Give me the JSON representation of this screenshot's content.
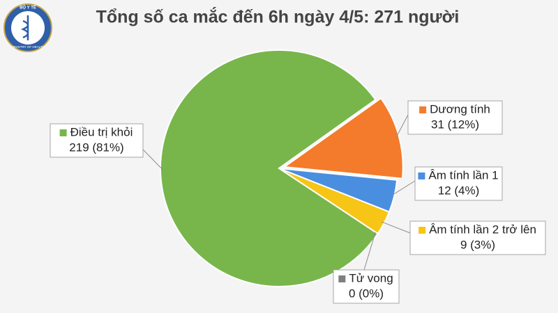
{
  "logo": {
    "top": "BỘ Y TẾ",
    "bottom": "MINISTRY OF HEALTH"
  },
  "chart_data": {
    "type": "pie",
    "title": "Tổng số ca mắc đến 6h ngày 4/5: 271 người",
    "categories": [
      "Dương tính",
      "Âm tính lần 1",
      "Âm tính lần 2 trở lên",
      "Tử vong",
      "Điều trị khỏi"
    ],
    "values": [
      31,
      12,
      9,
      0,
      219
    ],
    "value_labels": [
      "31 (12%)",
      "12 (4%)",
      "9 (3%)",
      "0 (0%)",
      "219 (81%)"
    ],
    "colors": [
      "#f47b2b",
      "#4a8ee0",
      "#f7c515",
      "#7f7f7f",
      "#78b64b"
    ]
  }
}
